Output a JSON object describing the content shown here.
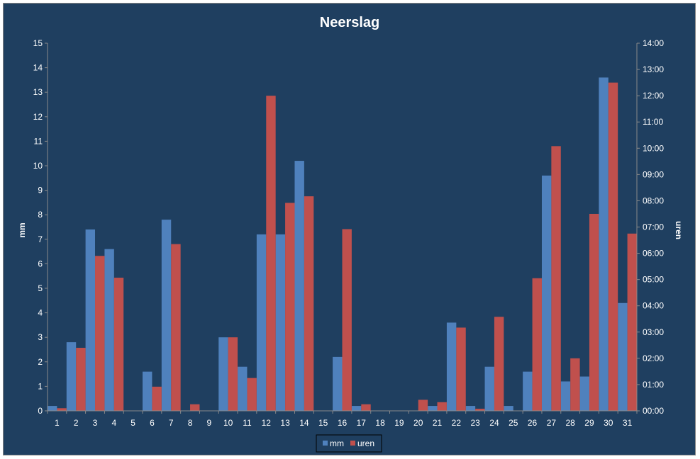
{
  "chart_data": {
    "type": "bar",
    "title": "Neerslag",
    "categories": [
      "1",
      "2",
      "3",
      "4",
      "5",
      "6",
      "7",
      "8",
      "9",
      "10",
      "11",
      "12",
      "13",
      "14",
      "15",
      "16",
      "17",
      "18",
      "19",
      "20",
      "21",
      "22",
      "23",
      "24",
      "25",
      "26",
      "27",
      "28",
      "29",
      "30",
      "31"
    ],
    "series": [
      {
        "name": "mm",
        "axis": "left",
        "color": "#4f81bd",
        "values": [
          0.2,
          2.8,
          7.4,
          6.6,
          0,
          1.6,
          7.8,
          0,
          0,
          3.0,
          1.8,
          7.2,
          7.2,
          10.2,
          0,
          2.2,
          0.2,
          0,
          0,
          0,
          0.2,
          3.6,
          0.2,
          1.8,
          0.2,
          1.6,
          9.6,
          1.2,
          1.4,
          13.6,
          4.4
        ]
      },
      {
        "name": "uren",
        "axis": "right",
        "color": "#c0504d",
        "unit": "hours",
        "values": [
          0.1,
          2.4,
          5.9,
          5.07,
          0,
          0.92,
          6.35,
          0.25,
          0,
          2.8,
          1.25,
          12.0,
          7.92,
          8.17,
          0,
          6.92,
          0.25,
          0,
          0,
          0.42,
          0.33,
          3.17,
          0.08,
          3.58,
          0,
          5.05,
          10.08,
          2.0,
          7.5,
          12.5,
          6.75
        ]
      }
    ],
    "ylabel": "mm",
    "ylim": [
      0,
      15
    ],
    "yticks": [
      "0",
      "1",
      "2",
      "3",
      "4",
      "5",
      "6",
      "7",
      "8",
      "9",
      "10",
      "11",
      "12",
      "13",
      "14",
      "15"
    ],
    "y2label": "uren",
    "y2lim": [
      0,
      14
    ],
    "y2ticks": [
      "00:00",
      "01:00",
      "02:00",
      "03:00",
      "04:00",
      "05:00",
      "06:00",
      "07:00",
      "08:00",
      "09:00",
      "10:00",
      "11:00",
      "12:00",
      "13:00",
      "14:00"
    ],
    "grid": false,
    "legend": "bottom"
  }
}
